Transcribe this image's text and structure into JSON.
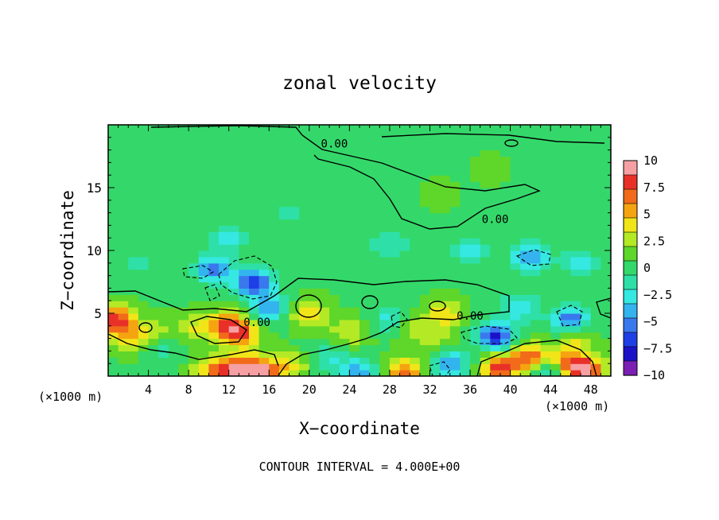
{
  "chart_data": {
    "type": "heatmap",
    "title": "zonal velocity",
    "xlabel": "X−coordinate",
    "ylabel": "Z−coordinate",
    "x_units": "(×1000 m)",
    "footer": "CONTOUR INTERVAL = 4.000E+00",
    "xlim": [
      0,
      50
    ],
    "ylim": [
      0,
      20
    ],
    "x_ticks": [
      4,
      8,
      12,
      16,
      20,
      24,
      28,
      32,
      36,
      40,
      44,
      48
    ],
    "x_tick_labels": [
      "4",
      "8",
      "12",
      "16",
      "20",
      "24",
      "28",
      "32",
      "36",
      "40",
      "44",
      "48"
    ],
    "y_ticks": [
      5,
      10,
      15
    ],
    "y_tick_labels": [
      "5",
      "10",
      "15"
    ],
    "contour_labels": [
      {
        "text": "0.00",
        "x": 22.5,
        "z": 18.5
      },
      {
        "text": "0.00",
        "x": 38.5,
        "z": 12.5
      },
      {
        "text": "0.00",
        "x": 14.8,
        "z": 4.3
      },
      {
        "text": "0.00",
        "x": 36.0,
        "z": 4.8
      }
    ],
    "colorbar": {
      "range": [
        -10,
        10
      ],
      "tick_labels": [
        "10",
        "7.5",
        "5",
        "2.5",
        "0",
        "−2.5",
        "−5",
        "−7.5",
        "−10"
      ],
      "colors": [
        "#f6a0a4",
        "#e83028",
        "#f16b1a",
        "#f5a411",
        "#f1e519",
        "#b3ea25",
        "#5fd62a",
        "#34d86a",
        "#2ee0a8",
        "#36e8e2",
        "#33b4ef",
        "#3a78ee",
        "#1f3fe6",
        "#1b12c8",
        "#7b1fb4"
      ]
    },
    "background_value": 0.5,
    "features": [
      {
        "x": 0.8,
        "z": 4.5,
        "value": 8.5
      },
      {
        "x": 2.5,
        "z": 3.0,
        "value": 4.0
      },
      {
        "x": 5.0,
        "z": 3.5,
        "value": 3.0
      },
      {
        "x": 9.0,
        "z": 4.0,
        "value": 3.5
      },
      {
        "x": 12.0,
        "z": 4.0,
        "value": 8.0
      },
      {
        "x": 13.5,
        "z": 3.2,
        "value": 5.0
      },
      {
        "x": 15.0,
        "z": 0.3,
        "value": 10.0
      },
      {
        "x": 13.0,
        "z": 0.5,
        "value": 7.0
      },
      {
        "x": 10.5,
        "z": 0.5,
        "value": 6.0
      },
      {
        "x": 18.0,
        "z": 0.8,
        "value": 4.0
      },
      {
        "x": 20.0,
        "z": 5.0,
        "value": 5.0
      },
      {
        "x": 24.0,
        "z": 3.5,
        "value": 3.5
      },
      {
        "x": 29.5,
        "z": 4.2,
        "value": 4.5
      },
      {
        "x": 29.5,
        "z": 0.4,
        "value": 6.5
      },
      {
        "x": 32.5,
        "z": 3.0,
        "value": 3.0
      },
      {
        "x": 33.5,
        "z": 5.0,
        "value": 4.5
      },
      {
        "x": 39.0,
        "z": 0.7,
        "value": 8.0
      },
      {
        "x": 42.0,
        "z": 1.5,
        "value": 7.5
      },
      {
        "x": 45.5,
        "z": 1.0,
        "value": 7.0
      },
      {
        "x": 47.5,
        "z": 0.5,
        "value": 8.5
      },
      {
        "x": 46.5,
        "z": 3.0,
        "value": 3.5
      },
      {
        "x": 14.5,
        "z": 7.5,
        "value": -7.5
      },
      {
        "x": 10.5,
        "z": 8.5,
        "value": -5.0
      },
      {
        "x": 16.0,
        "z": 5.5,
        "value": -4.5
      },
      {
        "x": 5.0,
        "z": 2.5,
        "value": -2.0
      },
      {
        "x": 22.0,
        "z": 1.5,
        "value": -2.0
      },
      {
        "x": 25.0,
        "z": 0.4,
        "value": -4.0
      },
      {
        "x": 28.5,
        "z": 4.5,
        "value": -4.5
      },
      {
        "x": 34.0,
        "z": 1.0,
        "value": -4.5
      },
      {
        "x": 38.5,
        "z": 3.2,
        "value": -7.5
      },
      {
        "x": 41.0,
        "z": 5.5,
        "value": -3.5
      },
      {
        "x": 44.0,
        "z": 0.4,
        "value": -4.5
      },
      {
        "x": 46.0,
        "z": 4.5,
        "value": -6.0
      },
      {
        "x": 42.0,
        "z": 9.5,
        "value": -5.0
      },
      {
        "x": 12.0,
        "z": 11.0,
        "value": -2.5
      },
      {
        "x": 28.0,
        "z": 10.5,
        "value": -2.0
      },
      {
        "x": 36.0,
        "z": 10.0,
        "value": -2.5
      },
      {
        "x": 47.0,
        "z": 9.0,
        "value": -3.0
      },
      {
        "x": 3.0,
        "z": 9.0,
        "value": -1.5
      },
      {
        "x": 18.0,
        "z": 13.0,
        "value": -1.0
      },
      {
        "x": 38.0,
        "z": 16.5,
        "value": 1.5
      },
      {
        "x": 33.0,
        "z": 14.5,
        "value": 1.2
      },
      {
        "x": 10.0,
        "z": 16.0,
        "value": -0.5
      },
      {
        "x": 45.0,
        "z": 14.0,
        "value": -0.7
      }
    ]
  }
}
